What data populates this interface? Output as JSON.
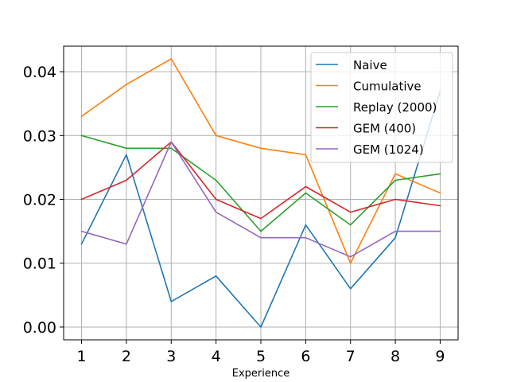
{
  "chart_data": {
    "type": "line",
    "title": "",
    "xlabel": "Experience",
    "ylabel": "",
    "x": [
      1,
      2,
      3,
      4,
      5,
      6,
      7,
      8,
      9
    ],
    "xticks": [
      "1",
      "2",
      "3",
      "4",
      "5",
      "6",
      "7",
      "8",
      "9"
    ],
    "yticks": [
      "0.00",
      "0.01",
      "0.02",
      "0.03",
      "0.04"
    ],
    "xlim": [
      0.6,
      9.4
    ],
    "ylim": [
      -0.002,
      0.044
    ],
    "grid": true,
    "legend_position": "top-right",
    "series": [
      {
        "name": "Naive",
        "color": "#1f77b4",
        "values": [
          0.013,
          0.027,
          0.004,
          0.008,
          0.0,
          0.016,
          0.006,
          0.014,
          0.037
        ]
      },
      {
        "name": "Cumulative",
        "color": "#ff7f0e",
        "values": [
          0.033,
          0.038,
          0.042,
          0.03,
          0.028,
          0.027,
          0.01,
          0.024,
          0.021
        ]
      },
      {
        "name": "Replay (2000)",
        "color": "#2ca02c",
        "values": [
          0.03,
          0.028,
          0.028,
          0.023,
          0.015,
          0.021,
          0.016,
          0.023,
          0.024
        ]
      },
      {
        "name": "GEM (400)",
        "color": "#d62728",
        "values": [
          0.02,
          0.023,
          0.029,
          0.02,
          0.017,
          0.022,
          0.018,
          0.02,
          0.019
        ]
      },
      {
        "name": "GEM (1024)",
        "color": "#9467bd",
        "values": [
          0.015,
          0.013,
          0.029,
          0.018,
          0.014,
          0.014,
          0.011,
          0.015,
          0.015
        ]
      }
    ]
  }
}
